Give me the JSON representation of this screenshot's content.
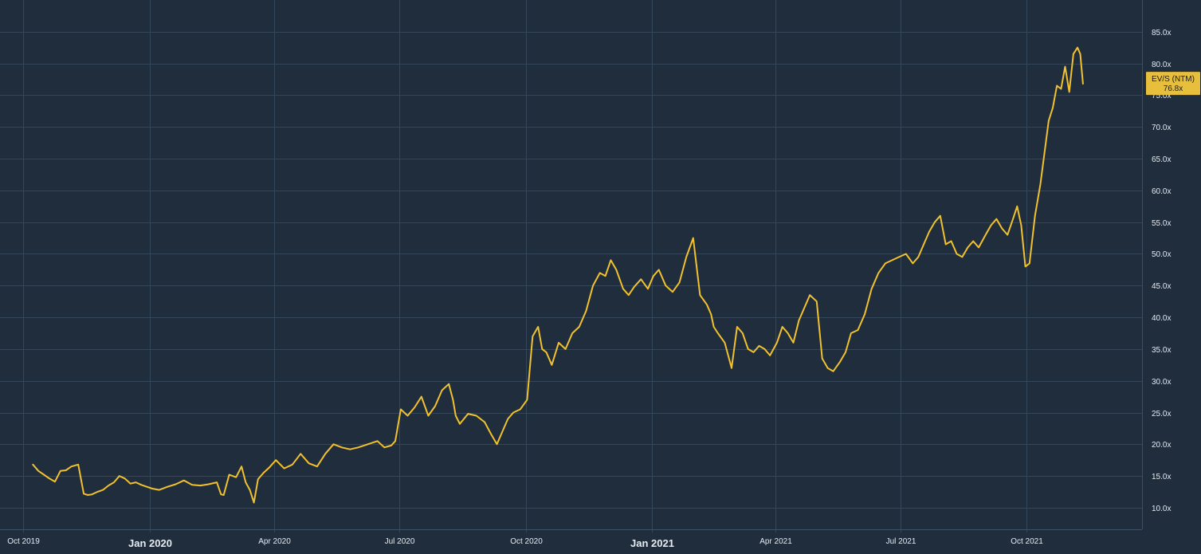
{
  "chart_data": {
    "type": "line",
    "title": "",
    "xlabel": "",
    "ylabel": "",
    "colors": {
      "background": "#1f2d3d",
      "grid": "#33465a",
      "text": "#e6ebf0",
      "series": "#f2c12e"
    },
    "grid": true,
    "legend": "none",
    "ylim": [
      6.6,
      90
    ],
    "y_ticks": [
      "10.0x",
      "15.0x",
      "20.0x",
      "25.0x",
      "30.0x",
      "35.0x",
      "40.0x",
      "45.0x",
      "50.0x",
      "55.0x",
      "60.0x",
      "65.0x",
      "70.0x",
      "75.0x",
      "80.0x",
      "85.0x"
    ],
    "y_tick_values": [
      10,
      15,
      20,
      25,
      30,
      35,
      40,
      45,
      50,
      55,
      60,
      65,
      70,
      75,
      80,
      85
    ],
    "xlim": [
      "2019-09-14",
      "2021-12-24"
    ],
    "x_ticks": [
      {
        "label": "Oct 2019",
        "date": "2019-10-01",
        "major": false
      },
      {
        "label": "Jan 2020",
        "date": "2020-01-01",
        "major": true
      },
      {
        "label": "Apr 2020",
        "date": "2020-04-01",
        "major": false
      },
      {
        "label": "Jul 2020",
        "date": "2020-07-01",
        "major": false
      },
      {
        "label": "Oct 2020",
        "date": "2020-10-01",
        "major": false
      },
      {
        "label": "Jan 2021",
        "date": "2021-01-01",
        "major": true
      },
      {
        "label": "Apr 2021",
        "date": "2021-04-01",
        "major": false
      },
      {
        "label": "Jul 2021",
        "date": "2021-07-01",
        "major": false
      },
      {
        "label": "Oct 2021",
        "date": "2021-10-01",
        "major": false
      }
    ],
    "last_value_badge": {
      "name": "EV/S (NTM)",
      "value": "76.8x"
    },
    "series": [
      {
        "name": "EV/S (NTM)",
        "x": [
          "2019-10-08",
          "2019-10-12",
          "2019-10-16",
          "2019-10-20",
          "2019-10-24",
          "2019-10-28",
          "2019-11-01",
          "2019-11-05",
          "2019-11-10",
          "2019-11-14",
          "2019-11-17",
          "2019-11-20",
          "2019-11-24",
          "2019-11-28",
          "2019-12-02",
          "2019-12-06",
          "2019-12-10",
          "2019-12-14",
          "2019-12-18",
          "2019-12-22",
          "2019-12-26",
          "2019-12-30",
          "2020-01-03",
          "2020-01-08",
          "2020-01-14",
          "2020-01-20",
          "2020-01-26",
          "2020-02-01",
          "2020-02-07",
          "2020-02-13",
          "2020-02-19",
          "2020-02-22",
          "2020-02-24",
          "2020-02-28",
          "2020-03-04",
          "2020-03-08",
          "2020-03-11",
          "2020-03-14",
          "2020-03-17",
          "2020-03-20",
          "2020-03-24",
          "2020-03-28",
          "2020-04-02",
          "2020-04-08",
          "2020-04-14",
          "2020-04-20",
          "2020-04-26",
          "2020-05-02",
          "2020-05-08",
          "2020-05-14",
          "2020-05-20",
          "2020-05-26",
          "2020-06-01",
          "2020-06-08",
          "2020-06-15",
          "2020-06-20",
          "2020-06-25",
          "2020-06-28",
          "2020-07-02",
          "2020-07-07",
          "2020-07-12",
          "2020-07-17",
          "2020-07-22",
          "2020-07-27",
          "2020-08-01",
          "2020-08-06",
          "2020-08-09",
          "2020-08-11",
          "2020-08-14",
          "2020-08-20",
          "2020-08-26",
          "2020-09-01",
          "2020-09-06",
          "2020-09-10",
          "2020-09-14",
          "2020-09-18",
          "2020-09-22",
          "2020-09-27",
          "2020-10-02",
          "2020-10-06",
          "2020-10-10",
          "2020-10-13",
          "2020-10-16",
          "2020-10-20",
          "2020-10-25",
          "2020-10-30",
          "2020-11-04",
          "2020-11-09",
          "2020-11-14",
          "2020-11-19",
          "2020-11-24",
          "2020-11-28",
          "2020-12-02",
          "2020-12-06",
          "2020-12-11",
          "2020-12-15",
          "2020-12-19",
          "2020-12-24",
          "2020-12-29",
          "2021-01-02",
          "2021-01-06",
          "2021-01-11",
          "2021-01-16",
          "2021-01-21",
          "2021-01-26",
          "2021-01-31",
          "2021-02-05",
          "2021-02-10",
          "2021-02-13",
          "2021-02-15",
          "2021-02-18",
          "2021-02-23",
          "2021-02-28",
          "2021-03-04",
          "2021-03-08",
          "2021-03-12",
          "2021-03-16",
          "2021-03-20",
          "2021-03-24",
          "2021-03-28",
          "2021-04-02",
          "2021-04-06",
          "2021-04-10",
          "2021-04-14",
          "2021-04-18",
          "2021-04-22",
          "2021-04-26",
          "2021-05-01",
          "2021-05-05",
          "2021-05-09",
          "2021-05-13",
          "2021-05-18",
          "2021-05-22",
          "2021-05-26",
          "2021-05-31",
          "2021-06-05",
          "2021-06-10",
          "2021-06-15",
          "2021-06-20",
          "2021-06-25",
          "2021-06-30",
          "2021-07-05",
          "2021-07-10",
          "2021-07-14",
          "2021-07-18",
          "2021-07-22",
          "2021-07-26",
          "2021-07-30",
          "2021-08-03",
          "2021-08-07",
          "2021-08-11",
          "2021-08-15",
          "2021-08-19",
          "2021-08-23",
          "2021-08-27",
          "2021-09-01",
          "2021-09-05",
          "2021-09-09",
          "2021-09-13",
          "2021-09-17",
          "2021-09-21",
          "2021-09-24",
          "2021-09-27",
          "2021-09-30",
          "2021-10-03",
          "2021-10-07",
          "2021-10-11",
          "2021-10-14",
          "2021-10-17",
          "2021-10-20",
          "2021-10-23",
          "2021-10-26",
          "2021-10-29",
          "2021-11-01",
          "2021-11-04",
          "2021-11-07",
          "2021-11-09",
          "2021-11-11"
        ],
        "values": [
          16.8,
          15.8,
          15.2,
          14.6,
          14.1,
          15.8,
          15.9,
          16.5,
          16.8,
          12.2,
          12.0,
          12.1,
          12.5,
          12.8,
          13.5,
          14.0,
          15.0,
          14.6,
          13.8,
          14.0,
          13.6,
          13.3,
          13.0,
          12.8,
          13.3,
          13.7,
          14.3,
          13.6,
          13.5,
          13.7,
          14.0,
          12.1,
          12.0,
          15.2,
          14.8,
          16.5,
          14.0,
          12.8,
          10.8,
          14.5,
          15.5,
          16.3,
          17.5,
          16.2,
          16.8,
          18.5,
          17.0,
          16.5,
          18.5,
          20.0,
          19.5,
          19.2,
          19.5,
          20.0,
          20.5,
          19.5,
          19.8,
          20.5,
          25.5,
          24.5,
          25.8,
          27.5,
          24.5,
          26.0,
          28.5,
          29.5,
          27.0,
          24.5,
          23.2,
          24.8,
          24.5,
          23.5,
          21.5,
          20.0,
          22.0,
          24.0,
          25.0,
          25.5,
          27.0,
          37.0,
          38.5,
          35.0,
          34.5,
          32.5,
          36.0,
          35.0,
          37.5,
          38.5,
          41.0,
          45.0,
          47.0,
          46.5,
          49.0,
          47.5,
          44.5,
          43.5,
          44.8,
          46.0,
          44.5,
          46.5,
          47.5,
          45.0,
          44.0,
          45.5,
          49.5,
          52.5,
          43.5,
          42.0,
          40.5,
          38.5,
          37.5,
          36.0,
          32.0,
          38.5,
          37.5,
          35.0,
          34.5,
          35.5,
          35.0,
          34.0,
          36.0,
          38.5,
          37.5,
          36.0,
          39.5,
          41.5,
          43.5,
          42.5,
          33.5,
          32.0,
          31.5,
          33.0,
          34.5,
          37.5,
          38.0,
          40.5,
          44.5,
          47.0,
          48.5,
          49.0,
          49.5,
          50.0,
          48.5,
          49.5,
          51.5,
          53.5,
          55.0,
          56.0,
          51.5,
          52.0,
          50.0,
          49.5,
          51.0,
          52.0,
          51.0,
          53.0,
          54.5,
          55.5,
          54.0,
          53.0,
          55.5,
          57.5,
          54.5,
          48.0,
          48.5,
          56.0,
          61.0,
          66.0,
          71.0,
          73.0,
          76.5,
          76.0,
          79.5,
          75.5,
          81.5,
          82.5,
          81.5,
          76.8
        ]
      }
    ]
  }
}
